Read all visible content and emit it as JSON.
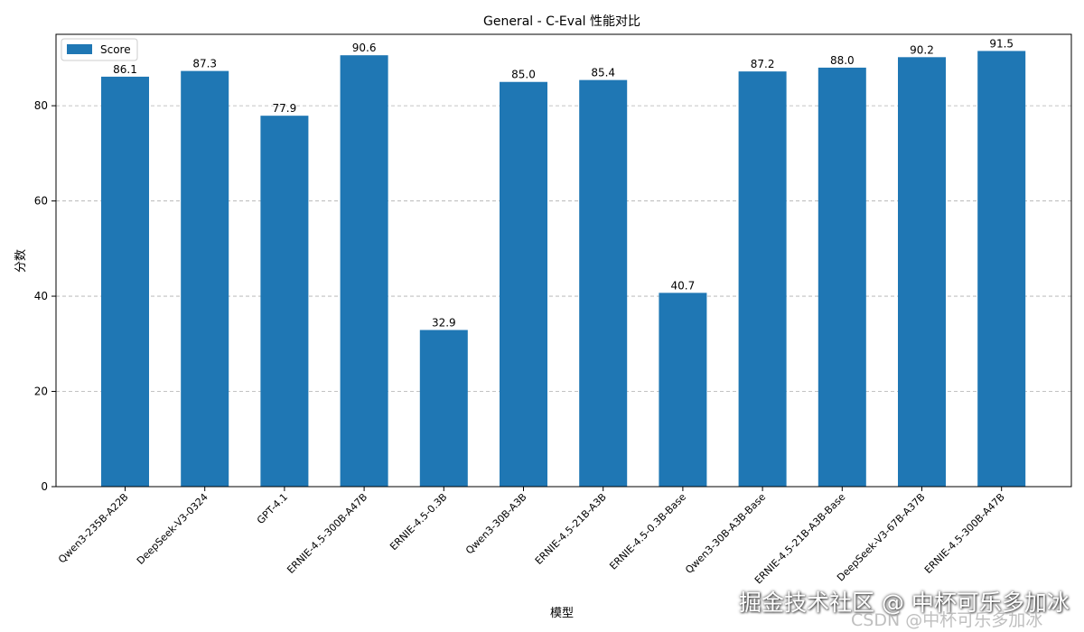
{
  "chart_data": {
    "type": "bar",
    "title": "General - C-Eval 性能对比",
    "xlabel": "模型",
    "ylabel": "分数",
    "ylim": [
      0,
      95
    ],
    "yticks": [
      0,
      20,
      40,
      60,
      80
    ],
    "grid": "y-dashed",
    "legend": {
      "placement": "top-left",
      "entries": [
        "Score"
      ]
    },
    "categories": [
      "Qwen3-235B-A22B",
      "DeepSeek-V3-0324",
      "GPT-4.1",
      "ERNIE-4.5-300B-A47B",
      "ERNIE-4.5-0.3B",
      "Qwen3-30B-A3B",
      "ERNIE-4.5-21B-A3B",
      "ERNIE-4.5-0.3B-Base",
      "Qwen3-30B-A3B-Base",
      "ERNIE-4.5-21B-A3B-Base",
      "DeepSeek-V3-67B-A37B",
      "ERNIE-4.5-300B-A47B"
    ],
    "series": [
      {
        "name": "Score",
        "values": [
          86.1,
          87.3,
          77.9,
          90.6,
          32.9,
          85.0,
          85.4,
          40.7,
          87.2,
          88.0,
          90.2,
          91.5
        ],
        "color": "#1f77b4"
      }
    ],
    "value_labels": [
      "86.1",
      "87.3",
      "77.9",
      "90.6",
      "32.9",
      "85.0",
      "85.4",
      "40.7",
      "87.2",
      "88.0",
      "90.2",
      "91.5"
    ]
  },
  "watermark": {
    "primary": "掘金技术社区 @ 中杯可乐多加冰",
    "secondary": "CSDN @中杯可乐多加冰"
  }
}
